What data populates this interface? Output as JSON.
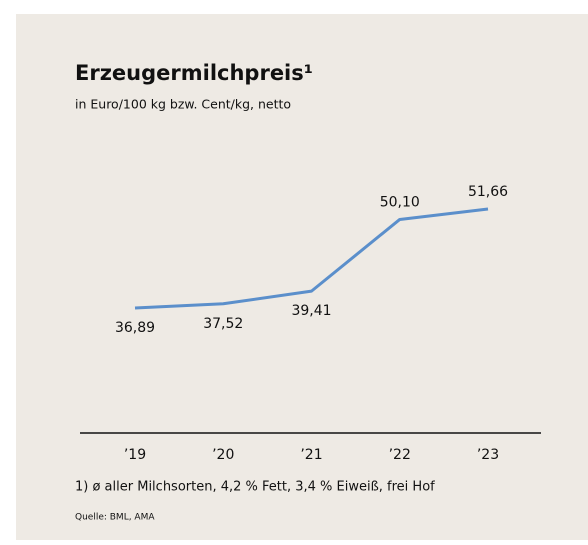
{
  "chart_data": {
    "type": "line",
    "title": "Erzeugermilchpreis¹",
    "subtitle": "in Euro/100 kg bzw. Cent/kg, netto",
    "categories": [
      "’19",
      "’20",
      "’21",
      "’22",
      "’23"
    ],
    "values": [
      36.89,
      37.52,
      39.41,
      50.1,
      51.66
    ],
    "value_labels": [
      "36,89",
      "37,52",
      "39,41",
      "50,10",
      "51,66"
    ],
    "color": "#5b8fcb",
    "footnote": "1) ø aller Milchsorten, 4,2 % Fett, 3,4 % Eiweiß, frei Hof",
    "source": "Quelle: BML, AMA"
  }
}
